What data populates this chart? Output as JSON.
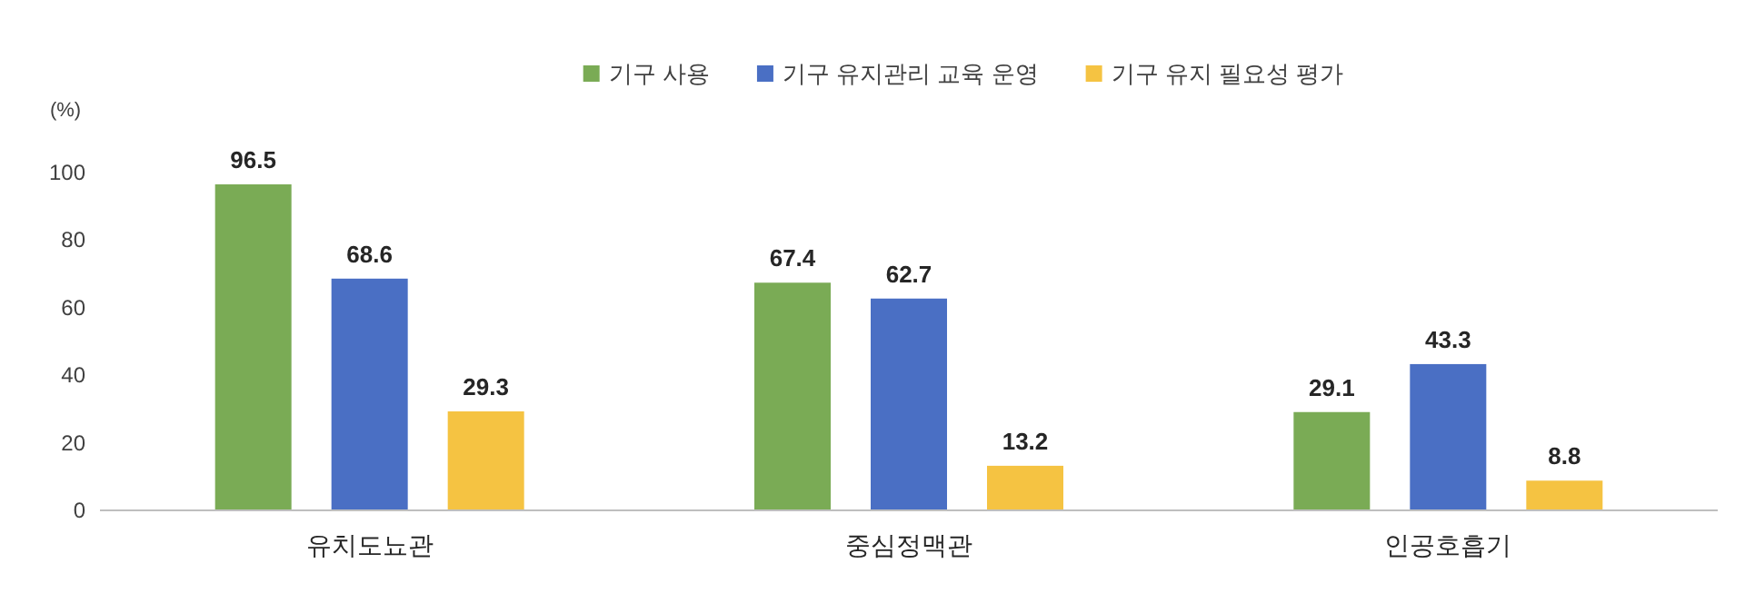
{
  "chart_data": {
    "type": "bar",
    "ylabel": "(%)",
    "categories": [
      "유치도뇨관",
      "중심정맥관",
      "인공호흡기"
    ],
    "series": [
      {
        "name": "기구 사용",
        "color": "#7aab55",
        "values": [
          96.5,
          67.4,
          29.1
        ]
      },
      {
        "name": "기구 유지관리 교육 운영",
        "color": "#4a6fc4",
        "values": [
          68.6,
          62.7,
          43.3
        ]
      },
      {
        "name": "기구 유지 필요성 평가",
        "color": "#f5c342",
        "values": [
          29.3,
          13.2,
          8.8
        ]
      }
    ],
    "ylim": [
      0,
      100
    ],
    "yticks": [
      0,
      20,
      40,
      60,
      80,
      100
    ],
    "legend": "top",
    "data_labels": true,
    "grid": false
  }
}
